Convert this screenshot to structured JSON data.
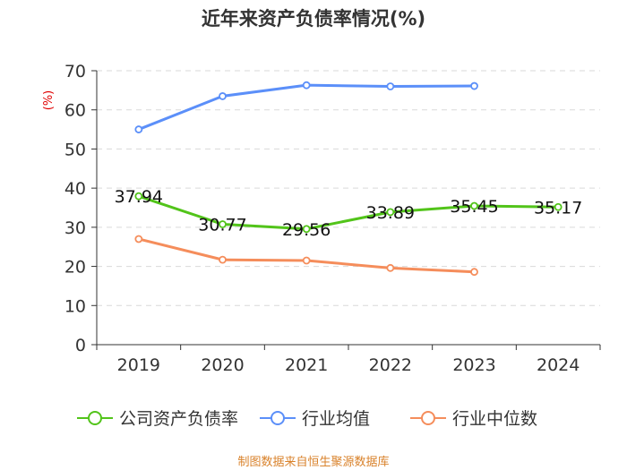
{
  "chart_data": {
    "type": "line",
    "title": "近年来资产负债率情况(%)",
    "ylabel": "(%)",
    "ylim": [
      0,
      70
    ],
    "yticks": [
      0,
      10,
      20,
      30,
      40,
      50,
      60,
      70
    ],
    "grid": true,
    "legend_position": "bottom",
    "categories": [
      "2019",
      "2020",
      "2021",
      "2022",
      "2023",
      "2024"
    ],
    "series": [
      {
        "name": "公司资产负债率",
        "color": "#52c41a",
        "values": [
          37.94,
          30.77,
          29.56,
          33.89,
          35.45,
          35.17
        ],
        "labels": [
          "37.94",
          "30.77",
          "29.56",
          "33.89",
          "35.45",
          "35.17"
        ]
      },
      {
        "name": "行业均值",
        "color": "#5b8ff9",
        "values": [
          55.0,
          63.5,
          66.3,
          66.0,
          66.1,
          null
        ]
      },
      {
        "name": "行业中位数",
        "color": "#f58d5b",
        "values": [
          27.0,
          21.7,
          21.5,
          19.6,
          18.6,
          null
        ]
      }
    ],
    "source": "制图数据来自恒生聚源数据库"
  }
}
